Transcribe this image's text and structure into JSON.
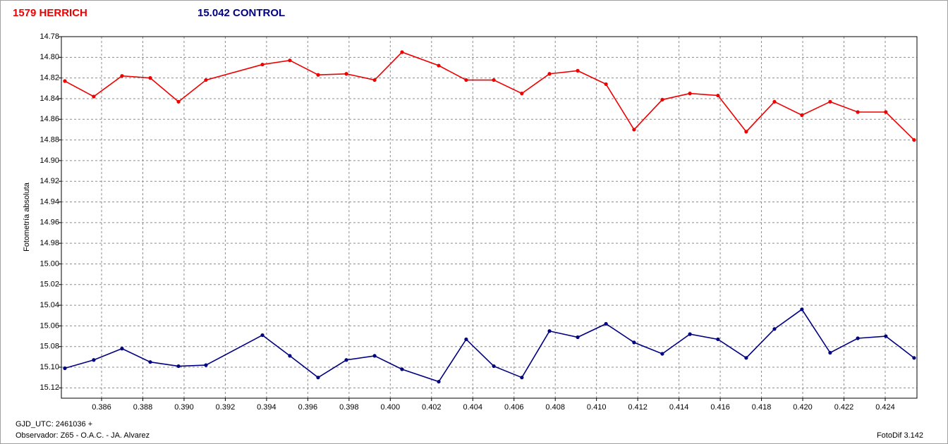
{
  "chart_data": {
    "type": "line",
    "y_label": "Fotometría absoluta",
    "x_prefix": "GJD_UTC: 2461036 +",
    "observer": "Observador: Z65 - O.A.C. - JA. Alvarez",
    "software": "FotoDif 3.142",
    "grid": true,
    "x": [
      0.38422,
      0.38562,
      0.38699,
      0.38836,
      0.38973,
      0.39106,
      0.3938,
      0.39513,
      0.3965,
      0.39787,
      0.39924,
      0.40057,
      0.40235,
      0.40368,
      0.40502,
      0.40638,
      0.40772,
      0.40909,
      0.41046,
      0.41182,
      0.41319,
      0.41453,
      0.41589,
      0.41726,
      0.41863,
      0.41996,
      0.42133,
      0.42267,
      0.42403,
      0.4254
    ],
    "series": [
      {
        "name": "1579 HERRICH",
        "color": "#ee0000",
        "values": [
          14.823,
          14.838,
          14.818,
          14.82,
          14.843,
          14.822,
          14.807,
          14.803,
          14.817,
          14.816,
          14.822,
          14.795,
          14.808,
          14.822,
          14.822,
          14.835,
          14.816,
          14.813,
          14.826,
          14.87,
          14.841,
          14.835,
          14.837,
          14.872,
          14.843,
          14.856,
          14.843,
          14.853,
          14.853,
          14.88
        ]
      },
      {
        "name": "15.042 CONTROL",
        "color": "#000080",
        "values": [
          15.101,
          15.093,
          15.082,
          15.095,
          15.099,
          15.098,
          15.069,
          15.089,
          15.11,
          15.093,
          15.089,
          15.102,
          15.114,
          15.073,
          15.099,
          15.11,
          15.065,
          15.071,
          15.058,
          15.076,
          15.087,
          15.068,
          15.073,
          15.091,
          15.063,
          15.044,
          15.086,
          15.072,
          15.07,
          15.091
        ]
      }
    ],
    "xlim": [
      0.38405,
      0.42554
    ],
    "ylim": [
      15.13,
      14.78
    ],
    "xticks": [
      0.386,
      0.388,
      {
        "value": 0.39,
        "label": "0.390"
      },
      0.392,
      0.394,
      0.396,
      0.398,
      {
        "value": 0.4,
        "label": "0.400"
      },
      0.402,
      0.404,
      0.406,
      0.408,
      {
        "value": 0.41,
        "label": "0.410"
      },
      0.412,
      0.414,
      0.416,
      0.418,
      {
        "value": 0.42,
        "label": "0.420"
      },
      0.422,
      0.424
    ],
    "yticks": [
      14.78,
      {
        "value": 14.8,
        "label": "14.80"
      },
      14.82,
      14.84,
      14.86,
      14.88,
      {
        "value": 14.9,
        "label": "14.90"
      },
      14.92,
      14.94,
      14.96,
      14.98,
      {
        "value": 15,
        "label": "15.00"
      },
      15.02,
      15.04,
      15.06,
      15.08,
      {
        "value": 15.1,
        "label": "15.10"
      },
      15.12
    ]
  }
}
